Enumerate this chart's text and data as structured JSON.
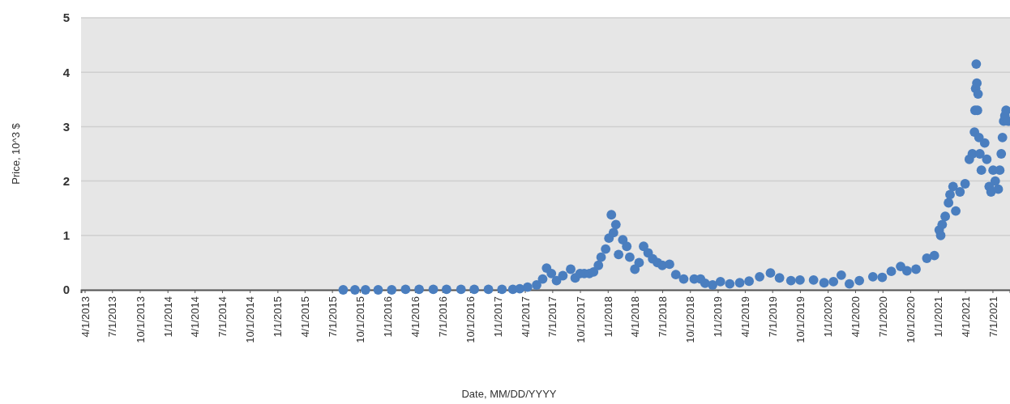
{
  "chart_data": {
    "type": "scatter",
    "xlabel": "Date, MM/DD/YYYY",
    "ylabel": "Price, 10^3 $",
    "marker": "circle",
    "grid": "y",
    "xlim": [
      "2013-03-20",
      "2021-08-28"
    ],
    "ylim": [
      0,
      5
    ],
    "yticks": [
      0,
      1,
      2,
      3,
      4,
      5
    ],
    "xticks": [
      {
        "value": "2013-04-01",
        "label": "4/1/2013"
      },
      {
        "value": "2013-07-01",
        "label": "7/1/2013"
      },
      {
        "value": "2013-10-01",
        "label": "10/1/2013"
      },
      {
        "value": "2014-01-01",
        "label": "1/1/2014"
      },
      {
        "value": "2014-04-01",
        "label": "4/1/2014"
      },
      {
        "value": "2014-07-01",
        "label": "7/1/2014"
      },
      {
        "value": "2014-10-01",
        "label": "10/1/2014"
      },
      {
        "value": "2015-01-01",
        "label": "1/1/2015"
      },
      {
        "value": "2015-04-01",
        "label": "4/1/2015"
      },
      {
        "value": "2015-07-01",
        "label": "7/1/2015"
      },
      {
        "value": "2015-10-01",
        "label": "10/1/2015"
      },
      {
        "value": "2016-01-01",
        "label": "1/1/2016"
      },
      {
        "value": "2016-04-01",
        "label": "4/1/2016"
      },
      {
        "value": "2016-07-01",
        "label": "7/1/2016"
      },
      {
        "value": "2016-10-01",
        "label": "10/1/2016"
      },
      {
        "value": "2017-01-01",
        "label": "1/1/2017"
      },
      {
        "value": "2017-04-01",
        "label": "4/1/2017"
      },
      {
        "value": "2017-07-01",
        "label": "7/1/2017"
      },
      {
        "value": "2017-10-01",
        "label": "10/1/2017"
      },
      {
        "value": "2018-01-01",
        "label": "1/1/2018"
      },
      {
        "value": "2018-04-01",
        "label": "4/1/2018"
      },
      {
        "value": "2018-07-01",
        "label": "7/1/2018"
      },
      {
        "value": "2018-10-01",
        "label": "10/1/2018"
      },
      {
        "value": "2019-01-01",
        "label": "1/1/2019"
      },
      {
        "value": "2019-04-01",
        "label": "4/1/2019"
      },
      {
        "value": "2019-07-01",
        "label": "7/1/2019"
      },
      {
        "value": "2019-10-01",
        "label": "10/1/2019"
      },
      {
        "value": "2020-01-01",
        "label": "1/1/2020"
      },
      {
        "value": "2020-04-01",
        "label": "4/1/2020"
      },
      {
        "value": "2020-07-01",
        "label": "7/1/2020"
      },
      {
        "value": "2020-10-01",
        "label": "10/1/2020"
      },
      {
        "value": "2021-01-01",
        "label": "1/1/2021"
      },
      {
        "value": "2021-04-01",
        "label": "4/1/2021"
      },
      {
        "value": "2021-07-01",
        "label": "7/1/2021"
      }
    ],
    "series": [
      {
        "color": "#4a7ebf",
        "x": [
          "2015-08-07",
          "2015-09-15",
          "2015-10-20",
          "2015-12-01",
          "2016-01-15",
          "2016-03-01",
          "2016-04-15",
          "2016-06-01",
          "2016-07-15",
          "2016-09-01",
          "2016-10-15",
          "2016-12-01",
          "2017-01-15",
          "2017-02-20",
          "2017-03-15",
          "2017-04-10",
          "2017-05-10",
          "2017-05-30",
          "2017-06-12",
          "2017-06-28",
          "2017-07-15",
          "2017-08-05",
          "2017-08-31",
          "2017-09-15",
          "2017-10-01",
          "2017-10-15",
          "2017-11-01",
          "2017-11-15",
          "2017-12-01",
          "2017-12-10",
          "2017-12-25",
          "2018-01-05",
          "2018-01-13",
          "2018-01-20",
          "2018-01-28",
          "2018-02-06",
          "2018-02-20",
          "2018-03-05",
          "2018-03-15",
          "2018-04-01",
          "2018-04-15",
          "2018-04-30",
          "2018-05-15",
          "2018-05-30",
          "2018-06-15",
          "2018-07-01",
          "2018-07-25",
          "2018-08-15",
          "2018-09-10",
          "2018-10-15",
          "2018-11-05",
          "2018-11-20",
          "2018-12-15",
          "2019-01-10",
          "2019-02-10",
          "2019-03-15",
          "2019-04-15",
          "2019-05-20",
          "2019-06-25",
          "2019-07-25",
          "2019-09-01",
          "2019-10-01",
          "2019-11-15",
          "2019-12-20",
          "2020-01-20",
          "2020-02-15",
          "2020-03-13",
          "2020-04-15",
          "2020-05-30",
          "2020-06-30",
          "2020-07-30",
          "2020-08-30",
          "2020-09-20",
          "2020-10-20",
          "2020-11-25",
          "2020-12-20",
          "2021-01-05",
          "2021-01-10",
          "2021-01-15",
          "2021-01-25",
          "2021-02-05",
          "2021-02-10",
          "2021-02-20",
          "2021-03-01",
          "2021-03-15",
          "2021-04-01",
          "2021-04-15",
          "2021-04-25",
          "2021-05-02",
          "2021-05-04",
          "2021-05-06",
          "2021-05-08",
          "2021-05-10",
          "2021-05-12",
          "2021-05-14",
          "2021-05-17",
          "2021-05-20",
          "2021-05-25",
          "2021-06-05",
          "2021-06-12",
          "2021-06-20",
          "2021-06-26",
          "2021-07-03",
          "2021-07-10",
          "2021-07-20",
          "2021-07-25",
          "2021-07-30",
          "2021-08-03",
          "2021-08-07",
          "2021-08-11",
          "2021-08-15",
          "2021-08-22"
        ],
        "values": [
          0,
          0,
          0,
          0,
          0,
          0.01,
          0.01,
          0.01,
          0.01,
          0.01,
          0.01,
          0.01,
          0.01,
          0.01,
          0.02,
          0.05,
          0.09,
          0.2,
          0.4,
          0.3,
          0.17,
          0.26,
          0.38,
          0.22,
          0.3,
          0.3,
          0.3,
          0.33,
          0.45,
          0.6,
          0.75,
          0.95,
          1.38,
          1.05,
          1.2,
          0.65,
          0.92,
          0.8,
          0.6,
          0.38,
          0.5,
          0.8,
          0.68,
          0.57,
          0.5,
          0.45,
          0.47,
          0.28,
          0.2,
          0.2,
          0.2,
          0.12,
          0.09,
          0.15,
          0.11,
          0.13,
          0.16,
          0.24,
          0.31,
          0.22,
          0.17,
          0.18,
          0.18,
          0.13,
          0.15,
          0.27,
          0.11,
          0.17,
          0.24,
          0.23,
          0.34,
          0.43,
          0.35,
          0.38,
          0.58,
          0.63,
          1.1,
          1.0,
          1.2,
          1.35,
          1.6,
          1.75,
          1.9,
          1.45,
          1.8,
          1.95,
          2.4,
          2.5,
          2.9,
          3.3,
          3.7,
          4.15,
          3.8,
          3.3,
          3.6,
          2.8,
          2.5,
          2.2,
          2.7,
          2.4,
          1.9,
          1.8,
          2.2,
          2.0,
          1.85,
          2.2,
          2.5,
          2.8,
          3.1,
          3.2,
          3.3,
          3.1
        ]
      }
    ]
  }
}
